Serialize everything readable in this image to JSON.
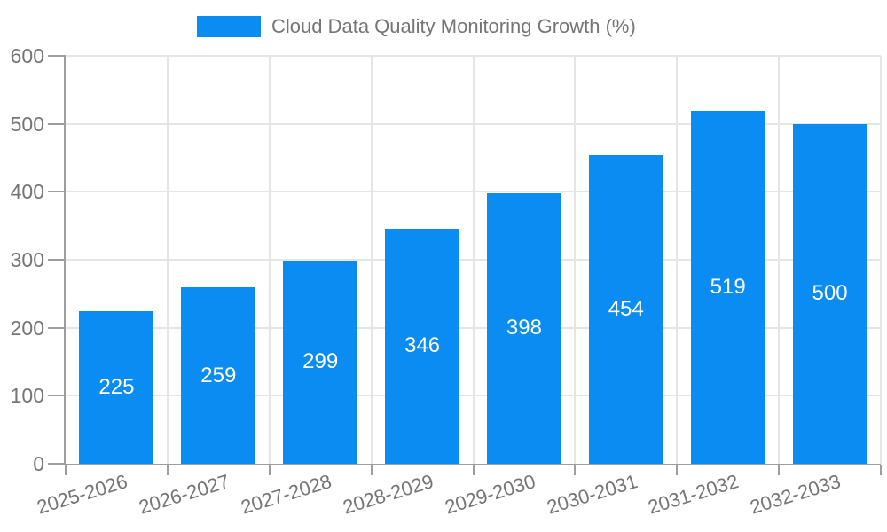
{
  "legend": {
    "label": "Cloud Data Quality Monitoring Growth (%)",
    "position": "top-center"
  },
  "colors": {
    "bar": "#0a8cf2",
    "bar_label": "#ffffff",
    "axis_text": "#757575",
    "axis_line": "#9e9e9e",
    "grid_line": "#e5e5e5",
    "background": "#ffffff"
  },
  "chart_data": {
    "type": "bar",
    "title": "Cloud Data Quality Monitoring Growth (%)",
    "categories": [
      "2025-2026",
      "2026-2027",
      "2027-2028",
      "2028-2029",
      "2029-2030",
      "2030-2031",
      "2031-2032",
      "2032-2033"
    ],
    "values": [
      225,
      259,
      299,
      346,
      398,
      454,
      519,
      500
    ],
    "xlabel": "",
    "ylabel": "",
    "ylim": [
      0,
      600
    ],
    "ytick_step": 100,
    "yticks": [
      0,
      100,
      200,
      300,
      400,
      500,
      600
    ],
    "grid": true,
    "legend_position": "top-center",
    "value_labels": "inside-center",
    "x_label_rotation_deg": -17
  }
}
